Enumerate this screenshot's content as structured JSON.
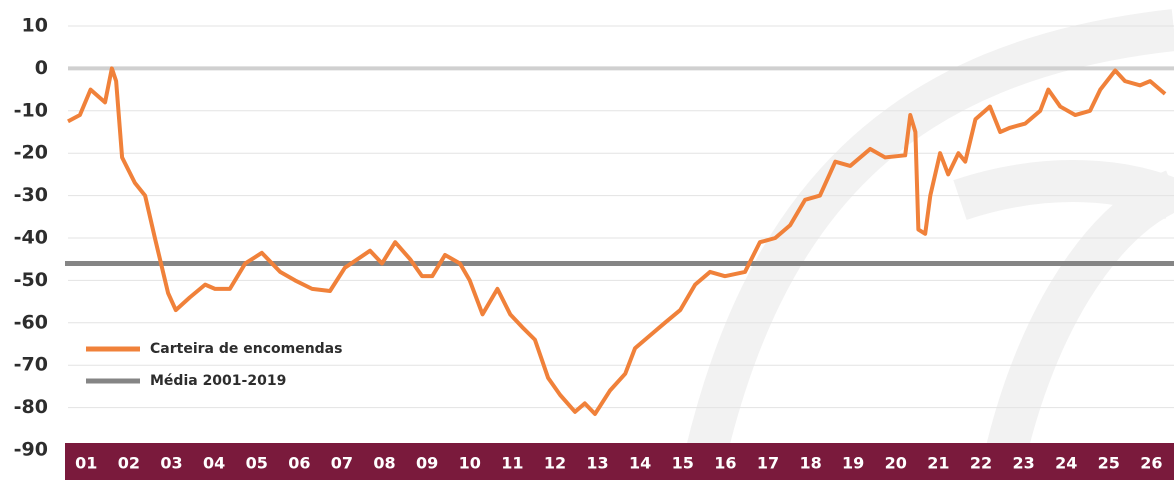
{
  "chart_data": {
    "type": "line",
    "xlim": [
      1,
      27.03
    ],
    "xticks": [
      {
        "value": 1.5,
        "label": "01"
      },
      {
        "value": 2.5,
        "label": "02"
      },
      {
        "value": 3.5,
        "label": "03"
      },
      {
        "value": 4.5,
        "label": "04"
      },
      {
        "value": 5.5,
        "label": "05"
      },
      {
        "value": 6.5,
        "label": "06"
      },
      {
        "value": 7.5,
        "label": "07"
      },
      {
        "value": 8.5,
        "label": "08"
      },
      {
        "value": 9.5,
        "label": "09"
      },
      {
        "value": 10.5,
        "label": "10"
      },
      {
        "value": 11.5,
        "label": "11"
      },
      {
        "value": 12.5,
        "label": "12"
      },
      {
        "value": 13.5,
        "label": "13"
      },
      {
        "value": 14.5,
        "label": "14"
      },
      {
        "value": 15.5,
        "label": "15"
      },
      {
        "value": 16.5,
        "label": "16"
      },
      {
        "value": 17.5,
        "label": "17"
      },
      {
        "value": 18.5,
        "label": "18"
      },
      {
        "value": 19.5,
        "label": "19"
      },
      {
        "value": 20.5,
        "label": "20"
      },
      {
        "value": 21.5,
        "label": "21"
      },
      {
        "value": 22.5,
        "label": "22"
      },
      {
        "value": 23.5,
        "label": "23"
      },
      {
        "value": 24.5,
        "label": "24"
      },
      {
        "value": 25.5,
        "label": "25"
      },
      {
        "value": 26.5,
        "label": "26"
      }
    ],
    "ylim": [
      -90,
      10
    ],
    "yticks": [
      10,
      0,
      -10,
      -20,
      -30,
      -40,
      -50,
      -60,
      -70,
      -80,
      -90
    ],
    "grid": true,
    "legend": "lower-left",
    "series": [
      {
        "name": "Carteira de encomendas",
        "color": "#f0813a",
        "x": [
          1.07,
          1.35,
          1.6,
          1.94,
          2.1,
          2.2,
          2.34,
          2.64,
          2.88,
          3.11,
          3.42,
          3.6,
          3.93,
          4.29,
          4.52,
          4.87,
          5.23,
          5.62,
          6.05,
          6.4,
          6.8,
          7.22,
          7.57,
          8.16,
          8.44,
          8.75,
          9.1,
          9.38,
          9.62,
          9.92,
          10.27,
          10.5,
          10.8,
          11.15,
          11.45,
          11.73,
          12.03,
          12.34,
          12.62,
          12.97,
          13.2,
          13.44,
          13.79,
          14.15,
          14.38,
          14.73,
          15.08,
          15.44,
          15.79,
          16.14,
          16.49,
          16.96,
          17.31,
          17.67,
          18.02,
          18.37,
          18.72,
          19.08,
          19.43,
          19.9,
          20.25,
          20.72,
          20.84,
          20.96,
          21.03,
          21.19,
          21.31,
          21.54,
          21.73,
          21.97,
          22.13,
          22.37,
          22.71,
          22.95,
          23.18,
          23.54,
          23.89,
          24.08,
          24.36,
          24.71,
          25.06,
          25.3,
          25.65,
          25.88,
          26.23,
          26.47,
          26.82
        ],
        "values": [
          -12.5,
          -11,
          -5,
          -8,
          0,
          -3,
          -21,
          -27,
          -30,
          -40,
          -53,
          -57,
          -54,
          -51,
          -52,
          -52,
          -46,
          -43.5,
          -48,
          -50,
          -52,
          -52.5,
          -47,
          -43,
          -46,
          -41,
          -45,
          -49,
          -49,
          -44,
          -46,
          -50,
          -58,
          -52,
          -58,
          -61,
          -64,
          -73,
          -77,
          -81,
          -79,
          -81.5,
          -76,
          -72,
          -66,
          -63,
          -60,
          -57,
          -51,
          -48,
          -49,
          -48,
          -41,
          -40,
          -37,
          -31,
          -30,
          -22,
          -23,
          -19,
          -21,
          -20.5,
          -11,
          -15,
          -38,
          -39,
          -30,
          -20,
          -25,
          -20,
          -22,
          -12,
          -9,
          -15,
          -14,
          -13,
          -10,
          -5,
          -9,
          -11,
          -10,
          -5,
          -0.5,
          -3,
          -4,
          -3,
          -6
        ]
      },
      {
        "name": "Média 2001-2019",
        "color": "#858585",
        "x": [
          1,
          27.03
        ],
        "values": [
          -46,
          -46
        ]
      }
    ]
  }
}
